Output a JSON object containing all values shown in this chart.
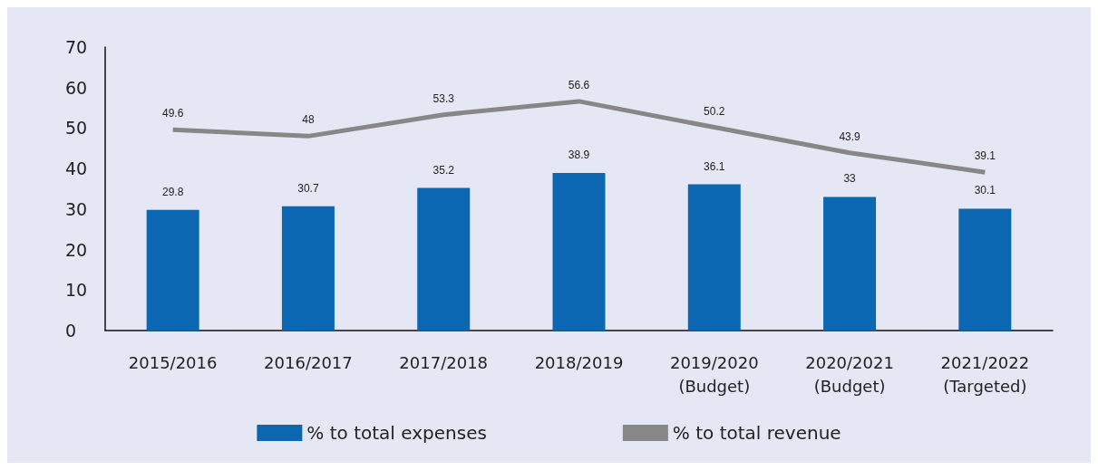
{
  "chart_data": {
    "type": "bar",
    "categories": [
      "2015/2016",
      "2016/2017",
      "2017/2018",
      "2018/2019",
      "2019/2020\n(Budget)",
      "2020/2021\n(Budget)",
      "2021/2022\n(Targeted)"
    ],
    "series": [
      {
        "name": "% to total expenses",
        "color": "#0b67b1",
        "values": [
          29.8,
          30.7,
          35.2,
          38.9,
          36.1,
          33,
          30.1
        ]
      },
      {
        "name": "% to total revenue",
        "type": "line",
        "color": "#878787",
        "values": [
          49.6,
          48,
          53.3,
          56.6,
          50.2,
          43.9,
          39.1
        ]
      }
    ],
    "ylim": [
      0,
      70
    ],
    "yticks": [
      0,
      10,
      20,
      30,
      40,
      50,
      60,
      70
    ],
    "grid": false,
    "legend": "bottom",
    "marker": "none",
    "data_labels": true
  }
}
